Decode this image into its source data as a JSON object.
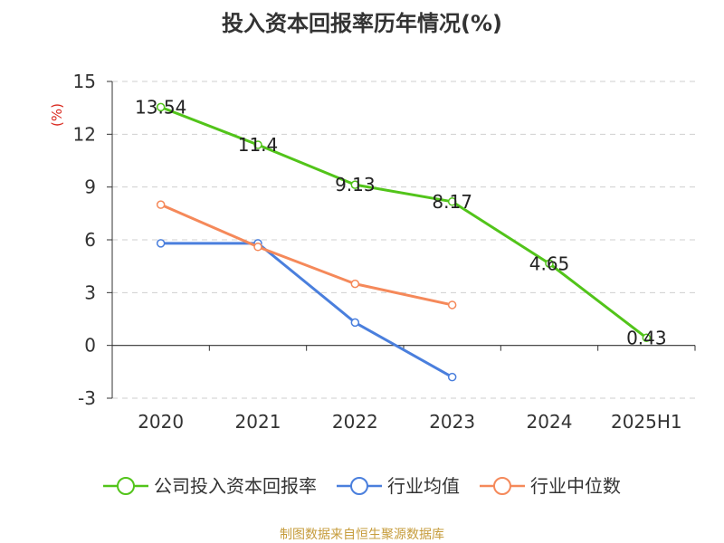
{
  "chart_data": {
    "type": "line",
    "title": "投入资本回报率历年情况(%)",
    "ylabel": "(%)",
    "xlabel": "",
    "categories": [
      "2020",
      "2021",
      "2022",
      "2023",
      "2024",
      "2025H1"
    ],
    "ylim": [
      -3,
      15
    ],
    "yticks": [
      15,
      12,
      9,
      6,
      3,
      0,
      -3
    ],
    "grid": true,
    "legend_position": "bottom",
    "series": [
      {
        "name": "公司投入资本回报率",
        "color": "#52c41a",
        "values": [
          13.54,
          11.4,
          9.13,
          8.17,
          4.65,
          0.43
        ],
        "labels": [
          "13.54",
          "11.4",
          "9.13",
          "8.17",
          "4.65",
          "0.43"
        ]
      },
      {
        "name": "行业均值",
        "color": "#4a7fdd",
        "values": [
          5.8,
          5.8,
          1.3,
          -1.8,
          null,
          null
        ]
      },
      {
        "name": "行业中位数",
        "color": "#f5895a",
        "values": [
          8.0,
          5.6,
          3.5,
          2.3,
          null,
          null
        ]
      }
    ]
  },
  "source": "制图数据来自恒生聚源数据库"
}
